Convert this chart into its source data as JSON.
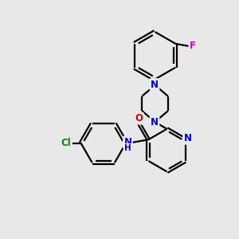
{
  "background_color": "#e8e8e8",
  "bond_color": "#000000",
  "N_color": "#0000cc",
  "O_color": "#cc0000",
  "Cl_color": "#008800",
  "F_color": "#cc00cc",
  "line_width": 1.6,
  "figsize": [
    3.0,
    3.0
  ],
  "dpi": 100,
  "xlim": [
    0,
    10
  ],
  "ylim": [
    0,
    10
  ]
}
